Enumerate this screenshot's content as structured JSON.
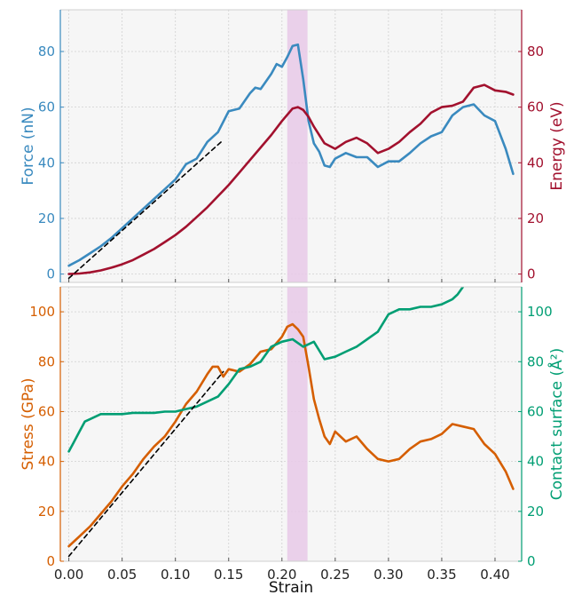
{
  "chart_data": [
    {
      "type": "line",
      "xlim": [
        -0.008,
        0.425
      ],
      "xticks": [
        0.0,
        0.05,
        0.1,
        0.15,
        0.2,
        0.25,
        0.3,
        0.35,
        0.4
      ],
      "xtick_labels": [
        "",
        "",
        "",
        "",
        "",
        "",
        "",
        "",
        ""
      ],
      "grid": true,
      "background": "#f6f6f6",
      "highlight_band": {
        "x0": 0.205,
        "x1": 0.224,
        "color": "#e8c9e8"
      },
      "left_axis": {
        "label": "Force (nN)",
        "color": "#3a8abf",
        "ylim": [
          -3,
          95
        ],
        "ticks": [
          0,
          20,
          40,
          60,
          80
        ]
      },
      "right_axis": {
        "label": "Energy (eV)",
        "color": "#a2112e",
        "ylim": [
          -3,
          95
        ],
        "ticks": [
          0,
          20,
          40,
          60,
          80
        ]
      },
      "series": [
        {
          "axis": "left",
          "color": "#3a8abf",
          "x": [
            0.0,
            0.01,
            0.02,
            0.03,
            0.04,
            0.05,
            0.06,
            0.07,
            0.08,
            0.09,
            0.1,
            0.11,
            0.12,
            0.13,
            0.14,
            0.15,
            0.16,
            0.17,
            0.175,
            0.18,
            0.19,
            0.195,
            0.2,
            0.205,
            0.21,
            0.215,
            0.22,
            0.225,
            0.23,
            0.235,
            0.24,
            0.245,
            0.25,
            0.26,
            0.27,
            0.28,
            0.29,
            0.3,
            0.31,
            0.32,
            0.33,
            0.34,
            0.35,
            0.36,
            0.37,
            0.38,
            0.39,
            0.4,
            0.41,
            0.417
          ],
          "y": [
            3,
            5,
            7.5,
            10,
            13,
            16.5,
            20,
            23.5,
            27,
            30.5,
            34,
            39.5,
            41.5,
            47.5,
            51,
            58.5,
            59.5,
            65,
            67,
            66.5,
            72,
            75.5,
            74.5,
            78,
            82,
            82.5,
            70,
            55,
            47,
            44,
            39,
            38.5,
            41.5,
            43.5,
            42,
            42,
            38.5,
            40.5,
            40.5,
            43.5,
            47,
            49.5,
            51,
            57,
            60,
            61,
            57,
            55,
            45,
            36
          ]
        },
        {
          "axis": "right",
          "color": "#a2112e",
          "x": [
            0.0,
            0.01,
            0.02,
            0.03,
            0.04,
            0.05,
            0.06,
            0.07,
            0.08,
            0.09,
            0.1,
            0.11,
            0.12,
            0.13,
            0.14,
            0.15,
            0.16,
            0.17,
            0.18,
            0.19,
            0.2,
            0.21,
            0.215,
            0.22,
            0.225,
            0.23,
            0.235,
            0.24,
            0.25,
            0.26,
            0.27,
            0.28,
            0.29,
            0.3,
            0.31,
            0.32,
            0.33,
            0.34,
            0.35,
            0.36,
            0.37,
            0.38,
            0.39,
            0.4,
            0.41,
            0.417
          ],
          "y": [
            0,
            0.2,
            0.6,
            1.3,
            2.3,
            3.5,
            5,
            7,
            9,
            11.5,
            14,
            17,
            20.5,
            24,
            28,
            32,
            36.5,
            41,
            45.5,
            50,
            55,
            59.5,
            60,
            59,
            56.5,
            53,
            50,
            47,
            45,
            47.5,
            49,
            47,
            43.5,
            45,
            47.5,
            51,
            54,
            58,
            60,
            60.5,
            62,
            67,
            68,
            66,
            65.5,
            64.5
          ]
        },
        {
          "axis": "left",
          "color": "#000000",
          "dashed": true,
          "x": [
            0.0,
            0.143
          ],
          "y": [
            -1.5,
            47.5
          ]
        }
      ]
    },
    {
      "type": "line",
      "xlim": [
        -0.008,
        0.425
      ],
      "xticks": [
        0.0,
        0.05,
        0.1,
        0.15,
        0.2,
        0.25,
        0.3,
        0.35,
        0.4
      ],
      "xtick_labels": [
        "0.00",
        "0.05",
        "0.10",
        "0.15",
        "0.20",
        "0.25",
        "0.30",
        "0.35",
        "0.40"
      ],
      "xlabel": "Strain",
      "grid": true,
      "background": "#f6f6f6",
      "highlight_band": {
        "x0": 0.205,
        "x1": 0.224,
        "color": "#e8c9e8"
      },
      "left_axis": {
        "label": "Stress (GPa)",
        "color": "#d55e00",
        "ylim": [
          0,
          110
        ],
        "ticks": [
          0,
          20,
          40,
          60,
          80,
          100
        ]
      },
      "right_axis": {
        "label": "Contact surface (Å²)",
        "color": "#009e73",
        "ylim": [
          0,
          110
        ],
        "ticks": [
          0,
          20,
          40,
          60,
          80,
          100
        ]
      },
      "series": [
        {
          "axis": "left",
          "color": "#d55e00",
          "x": [
            0.0,
            0.005,
            0.01,
            0.02,
            0.03,
            0.04,
            0.05,
            0.06,
            0.07,
            0.08,
            0.09,
            0.1,
            0.11,
            0.12,
            0.13,
            0.135,
            0.14,
            0.145,
            0.15,
            0.16,
            0.17,
            0.18,
            0.19,
            0.2,
            0.205,
            0.21,
            0.215,
            0.22,
            0.225,
            0.23,
            0.235,
            0.24,
            0.245,
            0.25,
            0.26,
            0.27,
            0.28,
            0.29,
            0.3,
            0.31,
            0.32,
            0.33,
            0.34,
            0.35,
            0.36,
            0.37,
            0.38,
            0.39,
            0.4,
            0.41,
            0.417
          ],
          "y": [
            6,
            8,
            10,
            14,
            19,
            24,
            30,
            35,
            41,
            46,
            50,
            56,
            63,
            68,
            75,
            78,
            78,
            74,
            77,
            76,
            79,
            84,
            85,
            90,
            94,
            95,
            93,
            90,
            78,
            65,
            57,
            50,
            47,
            52,
            48,
            50,
            45,
            41,
            40,
            41,
            45,
            48,
            49,
            51,
            55,
            54,
            53,
            47,
            43,
            36,
            29
          ]
        },
        {
          "axis": "right",
          "color": "#009e73",
          "x": [
            0.0,
            0.005,
            0.01,
            0.015,
            0.02,
            0.03,
            0.04,
            0.05,
            0.06,
            0.07,
            0.08,
            0.09,
            0.1,
            0.11,
            0.12,
            0.13,
            0.14,
            0.15,
            0.16,
            0.17,
            0.18,
            0.19,
            0.2,
            0.21,
            0.22,
            0.23,
            0.24,
            0.25,
            0.26,
            0.27,
            0.28,
            0.29,
            0.3,
            0.31,
            0.32,
            0.33,
            0.34,
            0.35,
            0.36,
            0.365,
            0.37
          ],
          "y": [
            44,
            48,
            52,
            56,
            57,
            59,
            59,
            59,
            59.5,
            59.5,
            59.5,
            60,
            60,
            61,
            62,
            64,
            66,
            71,
            77,
            78,
            80,
            86,
            88,
            89,
            86,
            88,
            81,
            82,
            84,
            86,
            89,
            92,
            99,
            101,
            101,
            102,
            102,
            103,
            105,
            107,
            110
          ]
        },
        {
          "axis": "left",
          "color": "#000000",
          "dashed": true,
          "x": [
            0.0,
            0.145
          ],
          "y": [
            2,
            76
          ]
        }
      ]
    }
  ]
}
